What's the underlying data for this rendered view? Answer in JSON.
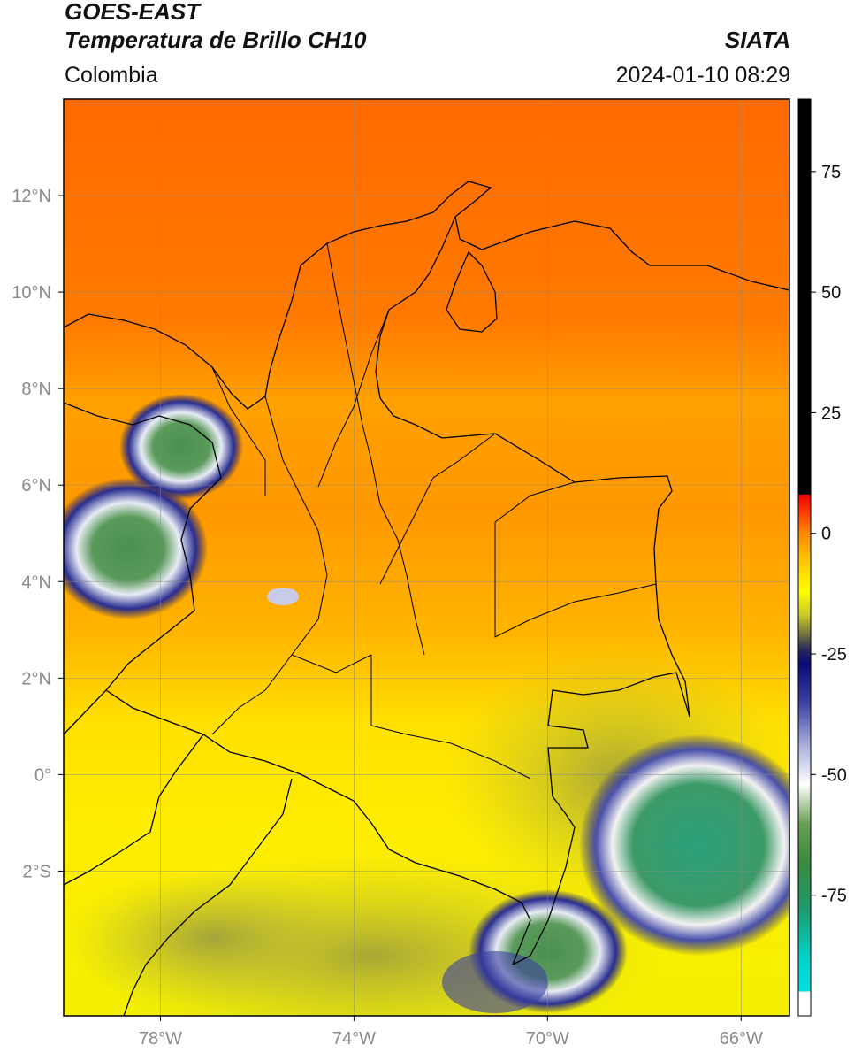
{
  "header": {
    "satellite": "GOES-EAST",
    "product": "Temperatura de Brillo CH10",
    "brand": "SIATA",
    "region": "Colombia",
    "timestamp": "2024-01-10 08:29"
  },
  "map": {
    "lon_range": [
      -80,
      -65
    ],
    "lat_range": [
      -5,
      14
    ],
    "lon_ticks": [
      {
        "value": -78,
        "label": "78°W"
      },
      {
        "value": -74,
        "label": "74°W"
      },
      {
        "value": -70,
        "label": "70°W"
      },
      {
        "value": -66,
        "label": "66°W"
      }
    ],
    "lat_ticks": [
      {
        "value": 12,
        "label": "12°N"
      },
      {
        "value": 10,
        "label": "10°N"
      },
      {
        "value": 8,
        "label": "8°N"
      },
      {
        "value": 6,
        "label": "6°N"
      },
      {
        "value": 4,
        "label": "4°N"
      },
      {
        "value": 2,
        "label": "2°N"
      },
      {
        "value": 0,
        "label": "0°"
      },
      {
        "value": -2,
        "label": "2°S"
      }
    ],
    "gridlines": true
  },
  "colorbar": {
    "range": [
      -100,
      90
    ],
    "ticks": [
      {
        "value": 75,
        "label": "75"
      },
      {
        "value": 50,
        "label": "50"
      },
      {
        "value": 25,
        "label": "25"
      },
      {
        "value": 0,
        "label": "0"
      },
      {
        "value": -25,
        "label": "-25"
      },
      {
        "value": -50,
        "label": "-50"
      },
      {
        "value": -75,
        "label": "-75"
      }
    ],
    "stops": [
      {
        "v": -100,
        "c": "#ffffff"
      },
      {
        "v": -95,
        "c": "#ffffff"
      },
      {
        "v": -94.9,
        "c": "#00e0e0"
      },
      {
        "v": -88,
        "c": "#00d4cc"
      },
      {
        "v": -78,
        "c": "#1e9a6c"
      },
      {
        "v": -68,
        "c": "#3a8a3e"
      },
      {
        "v": -60,
        "c": "#6aa058"
      },
      {
        "v": -52,
        "c": "#ffffff"
      },
      {
        "v": -44,
        "c": "#aab0dc"
      },
      {
        "v": -35,
        "c": "#3a40a0"
      },
      {
        "v": -27,
        "c": "#0a0a7a"
      },
      {
        "v": -24,
        "c": "#2a2a5a"
      },
      {
        "v": -21,
        "c": "#707040"
      },
      {
        "v": -17,
        "c": "#c8c828"
      },
      {
        "v": -12,
        "c": "#ffff00"
      },
      {
        "v": -5,
        "c": "#ffc000"
      },
      {
        "v": 0,
        "c": "#ff8800"
      },
      {
        "v": 5,
        "c": "#ff3000"
      },
      {
        "v": 8,
        "c": "#ee0000"
      },
      {
        "v": 8.1,
        "c": "#000000"
      },
      {
        "v": 90,
        "c": "#000000"
      }
    ]
  }
}
